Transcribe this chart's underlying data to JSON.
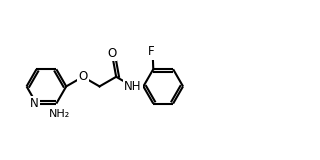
{
  "bg_color": "#ffffff",
  "line_color": "#000000",
  "bond_width": 1.5,
  "font_size": 8.5,
  "xlim": [
    0,
    10
  ],
  "ylim": [
    0,
    5
  ],
  "figsize": [
    3.2,
    1.6
  ],
  "dpi": 100
}
